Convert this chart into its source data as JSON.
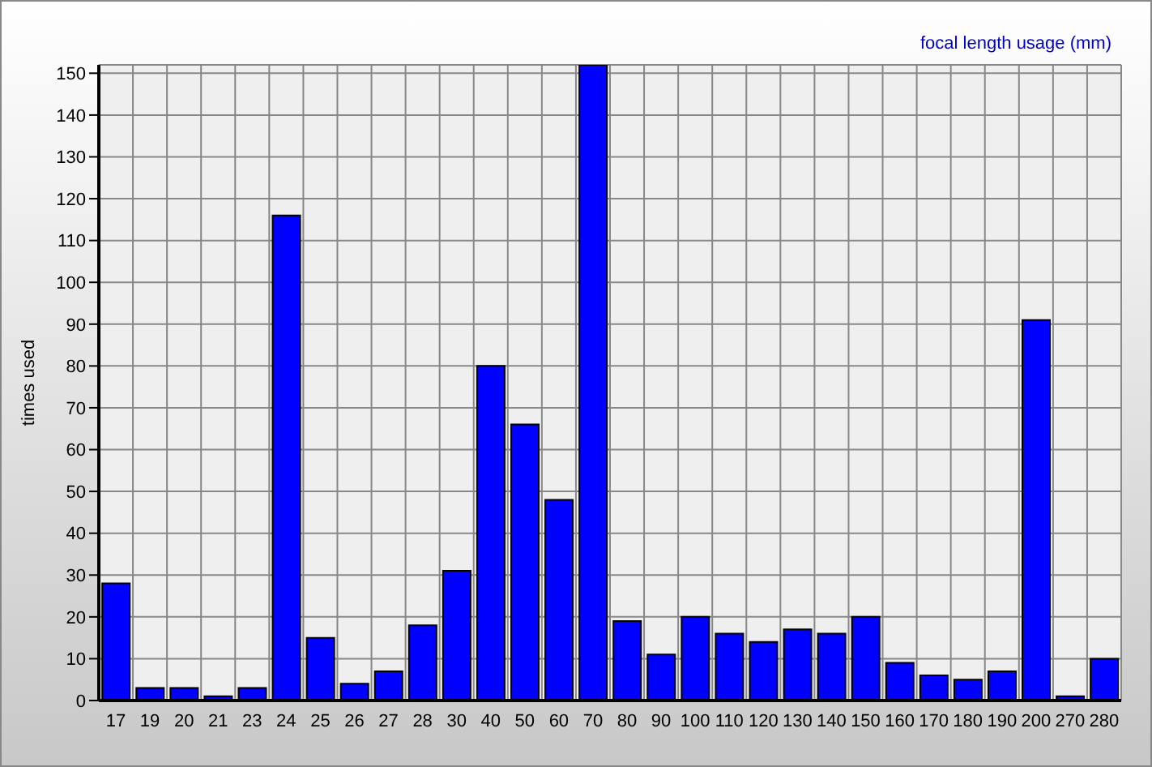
{
  "chart_data": {
    "type": "bar",
    "title": "focal length usage (mm)",
    "ylabel": "times used",
    "categories": [
      "17",
      "19",
      "20",
      "21",
      "23",
      "24",
      "25",
      "26",
      "27",
      "28",
      "30",
      "40",
      "50",
      "60",
      "70",
      "80",
      "90",
      "100",
      "110",
      "120",
      "130",
      "140",
      "150",
      "160",
      "170",
      "180",
      "190",
      "200",
      "270",
      "280"
    ],
    "values": [
      28,
      3,
      3,
      1,
      3,
      116,
      15,
      4,
      7,
      18,
      31,
      80,
      66,
      48,
      152,
      19,
      11,
      20,
      16,
      14,
      17,
      16,
      20,
      9,
      6,
      5,
      7,
      91,
      1,
      10
    ],
    "color": "#0000ff",
    "ylim": [
      0,
      152
    ],
    "yticks": [
      0,
      10,
      20,
      30,
      40,
      50,
      60,
      70,
      80,
      90,
      100,
      110,
      120,
      130,
      140,
      150
    ],
    "grid": true,
    "legend": false
  }
}
